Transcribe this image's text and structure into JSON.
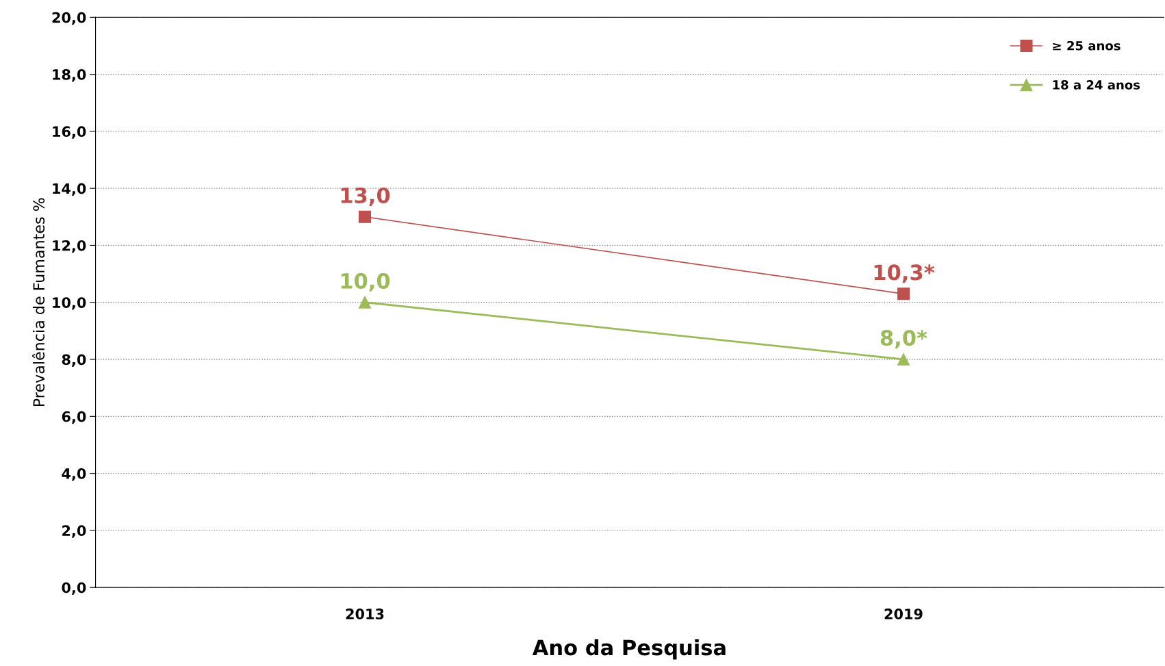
{
  "chart_data": {
    "type": "line",
    "xlabel": "Ano da Pesquisa",
    "ylabel": "Prevalência de Fumantes %",
    "x": [
      2013,
      2019
    ],
    "series": [
      {
        "name": "≥ 25 anos",
        "color": "#c0504d",
        "values": [
          13.0,
          10.3
        ],
        "marker": "square",
        "value_labels": [
          "13,0",
          "10,3*"
        ]
      },
      {
        "name": "18 a 24 anos",
        "color": "#9bbb59",
        "values": [
          10.0,
          8.0
        ],
        "marker": "triangle",
        "value_labels": [
          "10,0",
          "8,0*"
        ]
      }
    ],
    "xlim": [
      2010,
      2021.9
    ],
    "xticks": [
      2013,
      2019
    ],
    "ylim": [
      0,
      20
    ],
    "yticks": [
      {
        "value": 0,
        "label": "0,0"
      },
      {
        "value": 2,
        "label": "2,0"
      },
      {
        "value": 4,
        "label": "4,0"
      },
      {
        "value": 6,
        "label": "6,0"
      },
      {
        "value": 8,
        "label": "8,0"
      },
      {
        "value": 10,
        "label": "10,0"
      },
      {
        "value": 12,
        "label": "12,0"
      },
      {
        "value": 14,
        "label": "14,0"
      },
      {
        "value": 16,
        "label": "16,0"
      },
      {
        "value": 18,
        "label": "18,0"
      },
      {
        "value": 20,
        "label": "20,0"
      }
    ],
    "grid": "y",
    "legend": "top right",
    "line_style": "solid"
  }
}
